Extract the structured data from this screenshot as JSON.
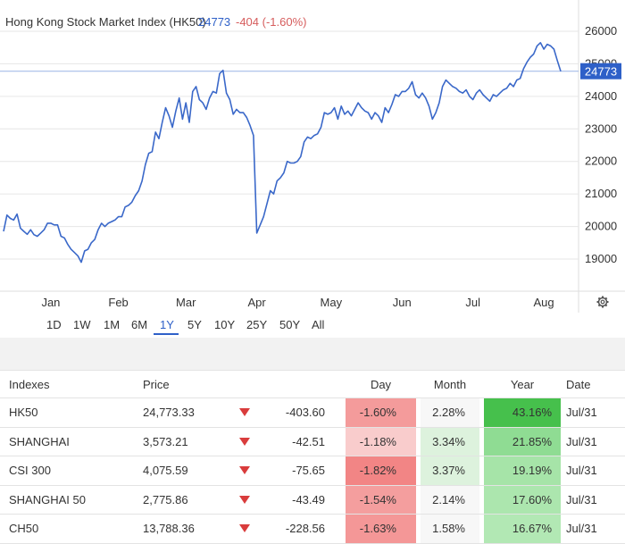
{
  "chart_data": {
    "type": "line",
    "title": "Hong Kong Stock Market Index (HK50)",
    "last_value": "24773",
    "change_text": "-404 (-1.60%)",
    "price_label": "24773",
    "x_ticks": [
      "Jan",
      "Feb",
      "Mar",
      "Apr",
      "May",
      "Jun",
      "Jul",
      "Aug"
    ],
    "y_ticks": [
      19000,
      20000,
      21000,
      22000,
      23000,
      24000,
      25000,
      26000
    ],
    "ylim": [
      18200,
      26400
    ],
    "grid": true,
    "series": [
      {
        "values": [
          [
            0,
            19850
          ],
          [
            1,
            20350
          ],
          [
            2,
            20250
          ],
          [
            3,
            20200
          ],
          [
            4,
            20380
          ],
          [
            5,
            19950
          ],
          [
            6,
            19850
          ],
          [
            7,
            19760
          ],
          [
            8,
            19900
          ],
          [
            9,
            19750
          ],
          [
            10,
            19700
          ],
          [
            11,
            19800
          ],
          [
            12,
            19900
          ],
          [
            13,
            20100
          ],
          [
            14,
            20100
          ],
          [
            15,
            20050
          ],
          [
            16,
            20050
          ],
          [
            17,
            19700
          ],
          [
            18,
            19650
          ],
          [
            19,
            19450
          ],
          [
            20,
            19300
          ],
          [
            21,
            19200
          ],
          [
            22,
            19100
          ],
          [
            23,
            18900
          ],
          [
            24,
            19250
          ],
          [
            25,
            19300
          ],
          [
            26,
            19500
          ],
          [
            27,
            19600
          ],
          [
            28,
            19900
          ],
          [
            29,
            20100
          ],
          [
            30,
            20000
          ],
          [
            31,
            20100
          ],
          [
            32,
            20150
          ],
          [
            33,
            20200
          ],
          [
            34,
            20300
          ],
          [
            35,
            20300
          ],
          [
            36,
            20600
          ],
          [
            37,
            20650
          ],
          [
            38,
            20750
          ],
          [
            39,
            20950
          ],
          [
            40,
            21100
          ],
          [
            41,
            21400
          ],
          [
            42,
            21900
          ],
          [
            43,
            22250
          ],
          [
            44,
            22300
          ],
          [
            45,
            22900
          ],
          [
            46,
            22700
          ],
          [
            47,
            23200
          ],
          [
            48,
            23650
          ],
          [
            49,
            23400
          ],
          [
            50,
            23050
          ],
          [
            51,
            23550
          ],
          [
            52,
            23950
          ],
          [
            53,
            23300
          ],
          [
            54,
            23800
          ],
          [
            55,
            23200
          ],
          [
            56,
            24150
          ],
          [
            57,
            24300
          ],
          [
            58,
            23900
          ],
          [
            59,
            23800
          ],
          [
            60,
            23600
          ],
          [
            61,
            23950
          ],
          [
            62,
            24150
          ],
          [
            63,
            24100
          ],
          [
            64,
            24700
          ],
          [
            65,
            24800
          ],
          [
            66,
            24100
          ],
          [
            67,
            23900
          ],
          [
            68,
            23450
          ],
          [
            69,
            23600
          ],
          [
            70,
            23500
          ],
          [
            71,
            23500
          ],
          [
            72,
            23350
          ],
          [
            73,
            23100
          ],
          [
            74,
            22800
          ],
          [
            75,
            19800
          ],
          [
            76,
            20050
          ],
          [
            77,
            20300
          ],
          [
            78,
            20700
          ],
          [
            79,
            21100
          ],
          [
            80,
            21000
          ],
          [
            81,
            21400
          ],
          [
            82,
            21500
          ],
          [
            83,
            21650
          ],
          [
            84,
            22000
          ],
          [
            85,
            21950
          ],
          [
            86,
            21950
          ],
          [
            87,
            22000
          ],
          [
            88,
            22150
          ],
          [
            89,
            22600
          ],
          [
            90,
            22750
          ],
          [
            91,
            22700
          ],
          [
            92,
            22800
          ],
          [
            93,
            22850
          ],
          [
            94,
            23050
          ],
          [
            95,
            23500
          ],
          [
            96,
            23450
          ],
          [
            97,
            23500
          ],
          [
            98,
            23650
          ],
          [
            99,
            23300
          ],
          [
            100,
            23700
          ],
          [
            101,
            23450
          ],
          [
            102,
            23550
          ],
          [
            103,
            23400
          ],
          [
            104,
            23600
          ],
          [
            105,
            23800
          ],
          [
            106,
            23650
          ],
          [
            107,
            23550
          ],
          [
            108,
            23500
          ],
          [
            109,
            23300
          ],
          [
            110,
            23500
          ],
          [
            111,
            23400
          ],
          [
            112,
            23200
          ],
          [
            113,
            23650
          ],
          [
            114,
            23500
          ],
          [
            115,
            23750
          ],
          [
            116,
            24050
          ],
          [
            117,
            24000
          ],
          [
            118,
            24150
          ],
          [
            119,
            24150
          ],
          [
            120,
            24250
          ],
          [
            121,
            24450
          ],
          [
            122,
            24050
          ],
          [
            123,
            23950
          ],
          [
            124,
            24100
          ],
          [
            125,
            23950
          ],
          [
            126,
            23700
          ],
          [
            127,
            23300
          ],
          [
            128,
            23500
          ],
          [
            129,
            23800
          ],
          [
            130,
            24300
          ],
          [
            131,
            24500
          ],
          [
            132,
            24400
          ],
          [
            133,
            24300
          ],
          [
            134,
            24250
          ],
          [
            135,
            24150
          ],
          [
            136,
            24100
          ],
          [
            137,
            24200
          ],
          [
            138,
            24000
          ],
          [
            139,
            23900
          ],
          [
            140,
            24100
          ],
          [
            141,
            24200
          ],
          [
            142,
            24050
          ],
          [
            143,
            23950
          ],
          [
            144,
            23850
          ],
          [
            145,
            24050
          ],
          [
            146,
            24000
          ],
          [
            147,
            24100
          ],
          [
            148,
            24200
          ],
          [
            149,
            24250
          ],
          [
            150,
            24400
          ],
          [
            151,
            24300
          ],
          [
            152,
            24500
          ],
          [
            153,
            24550
          ],
          [
            154,
            24850
          ],
          [
            155,
            25050
          ],
          [
            156,
            25200
          ],
          [
            157,
            25300
          ],
          [
            158,
            25550
          ],
          [
            159,
            25650
          ],
          [
            160,
            25450
          ],
          [
            161,
            25600
          ],
          [
            162,
            25550
          ],
          [
            163,
            25450
          ],
          [
            164,
            25100
          ],
          [
            165,
            24773
          ]
        ]
      }
    ]
  },
  "range_buttons": [
    "1D",
    "1W",
    "1M",
    "6M",
    "1Y",
    "5Y",
    "10Y",
    "25Y",
    "50Y",
    "All"
  ],
  "table": {
    "headers": {
      "name": "Indexes",
      "price": "Price",
      "day": "Day",
      "month": "Month",
      "year": "Year",
      "date": "Date"
    },
    "rows": [
      {
        "name": "HK50",
        "price": "24,773.33",
        "change": "-403.60",
        "day": "-1.60%",
        "month": "2.28%",
        "year": "43.16%",
        "date": "Jul/31",
        "day_bg": "#f49b9b",
        "month_bg": "#f7f7f7",
        "year_bg": "#46c04c"
      },
      {
        "name": "SHANGHAI",
        "price": "3,573.21",
        "change": "-42.51",
        "day": "-1.18%",
        "month": "3.34%",
        "year": "21.85%",
        "date": "Jul/31",
        "day_bg": "#f9cccc",
        "month_bg": "#ddf2dd",
        "year_bg": "#8fdc93"
      },
      {
        "name": "CSI 300",
        "price": "4,075.59",
        "change": "-75.65",
        "day": "-1.82%",
        "month": "3.37%",
        "year": "19.19%",
        "date": "Jul/31",
        "day_bg": "#f28585",
        "month_bg": "#ddf2dd",
        "year_bg": "#a6e4a8"
      },
      {
        "name": "SHANGHAI 50",
        "price": "2,775.86",
        "change": "-43.49",
        "day": "-1.54%",
        "month": "2.14%",
        "year": "17.60%",
        "date": "Jul/31",
        "day_bg": "#f49e9e",
        "month_bg": "#f7f7f7",
        "year_bg": "#ace6ae"
      },
      {
        "name": "CH50",
        "price": "13,788.36",
        "change": "-228.56",
        "day": "-1.63%",
        "month": "1.58%",
        "year": "16.67%",
        "date": "Jul/31",
        "day_bg": "#f49797",
        "month_bg": "#f7f7f7",
        "year_bg": "#b2e8b4"
      }
    ]
  },
  "colors": {
    "line": "#3a68c9",
    "accent": "#2e60c8",
    "negative": "#d65d5d",
    "down_arrow": "#d93c3c"
  },
  "icons": {
    "settings": "gear-icon"
  }
}
